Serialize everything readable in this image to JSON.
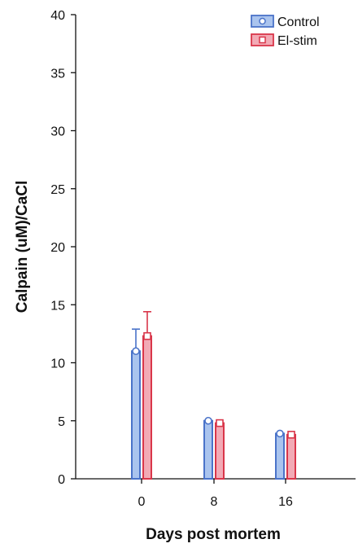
{
  "chart_data": {
    "type": "bar",
    "title": "",
    "xlabel": "Days post mortem",
    "ylabel": "Calpain (uM)/CaCl",
    "categories": [
      "0",
      "8",
      "16"
    ],
    "ylim": [
      0,
      40
    ],
    "yticks": [
      0,
      5,
      10,
      15,
      20,
      25,
      30,
      35,
      40
    ],
    "legend_position": "top-right",
    "grid": false,
    "series": [
      {
        "name": "Control",
        "values": [
          11.0,
          5.0,
          3.9
        ],
        "error": [
          1.9,
          0,
          0
        ],
        "color": "#4a73c9",
        "fill": "#aac4ee",
        "marker": "circle"
      },
      {
        "name": "El-stim",
        "values": [
          12.3,
          4.8,
          3.8
        ],
        "error": [
          2.1,
          0,
          0
        ],
        "color": "#d9364a",
        "fill": "#f2aab5",
        "marker": "square"
      }
    ]
  }
}
